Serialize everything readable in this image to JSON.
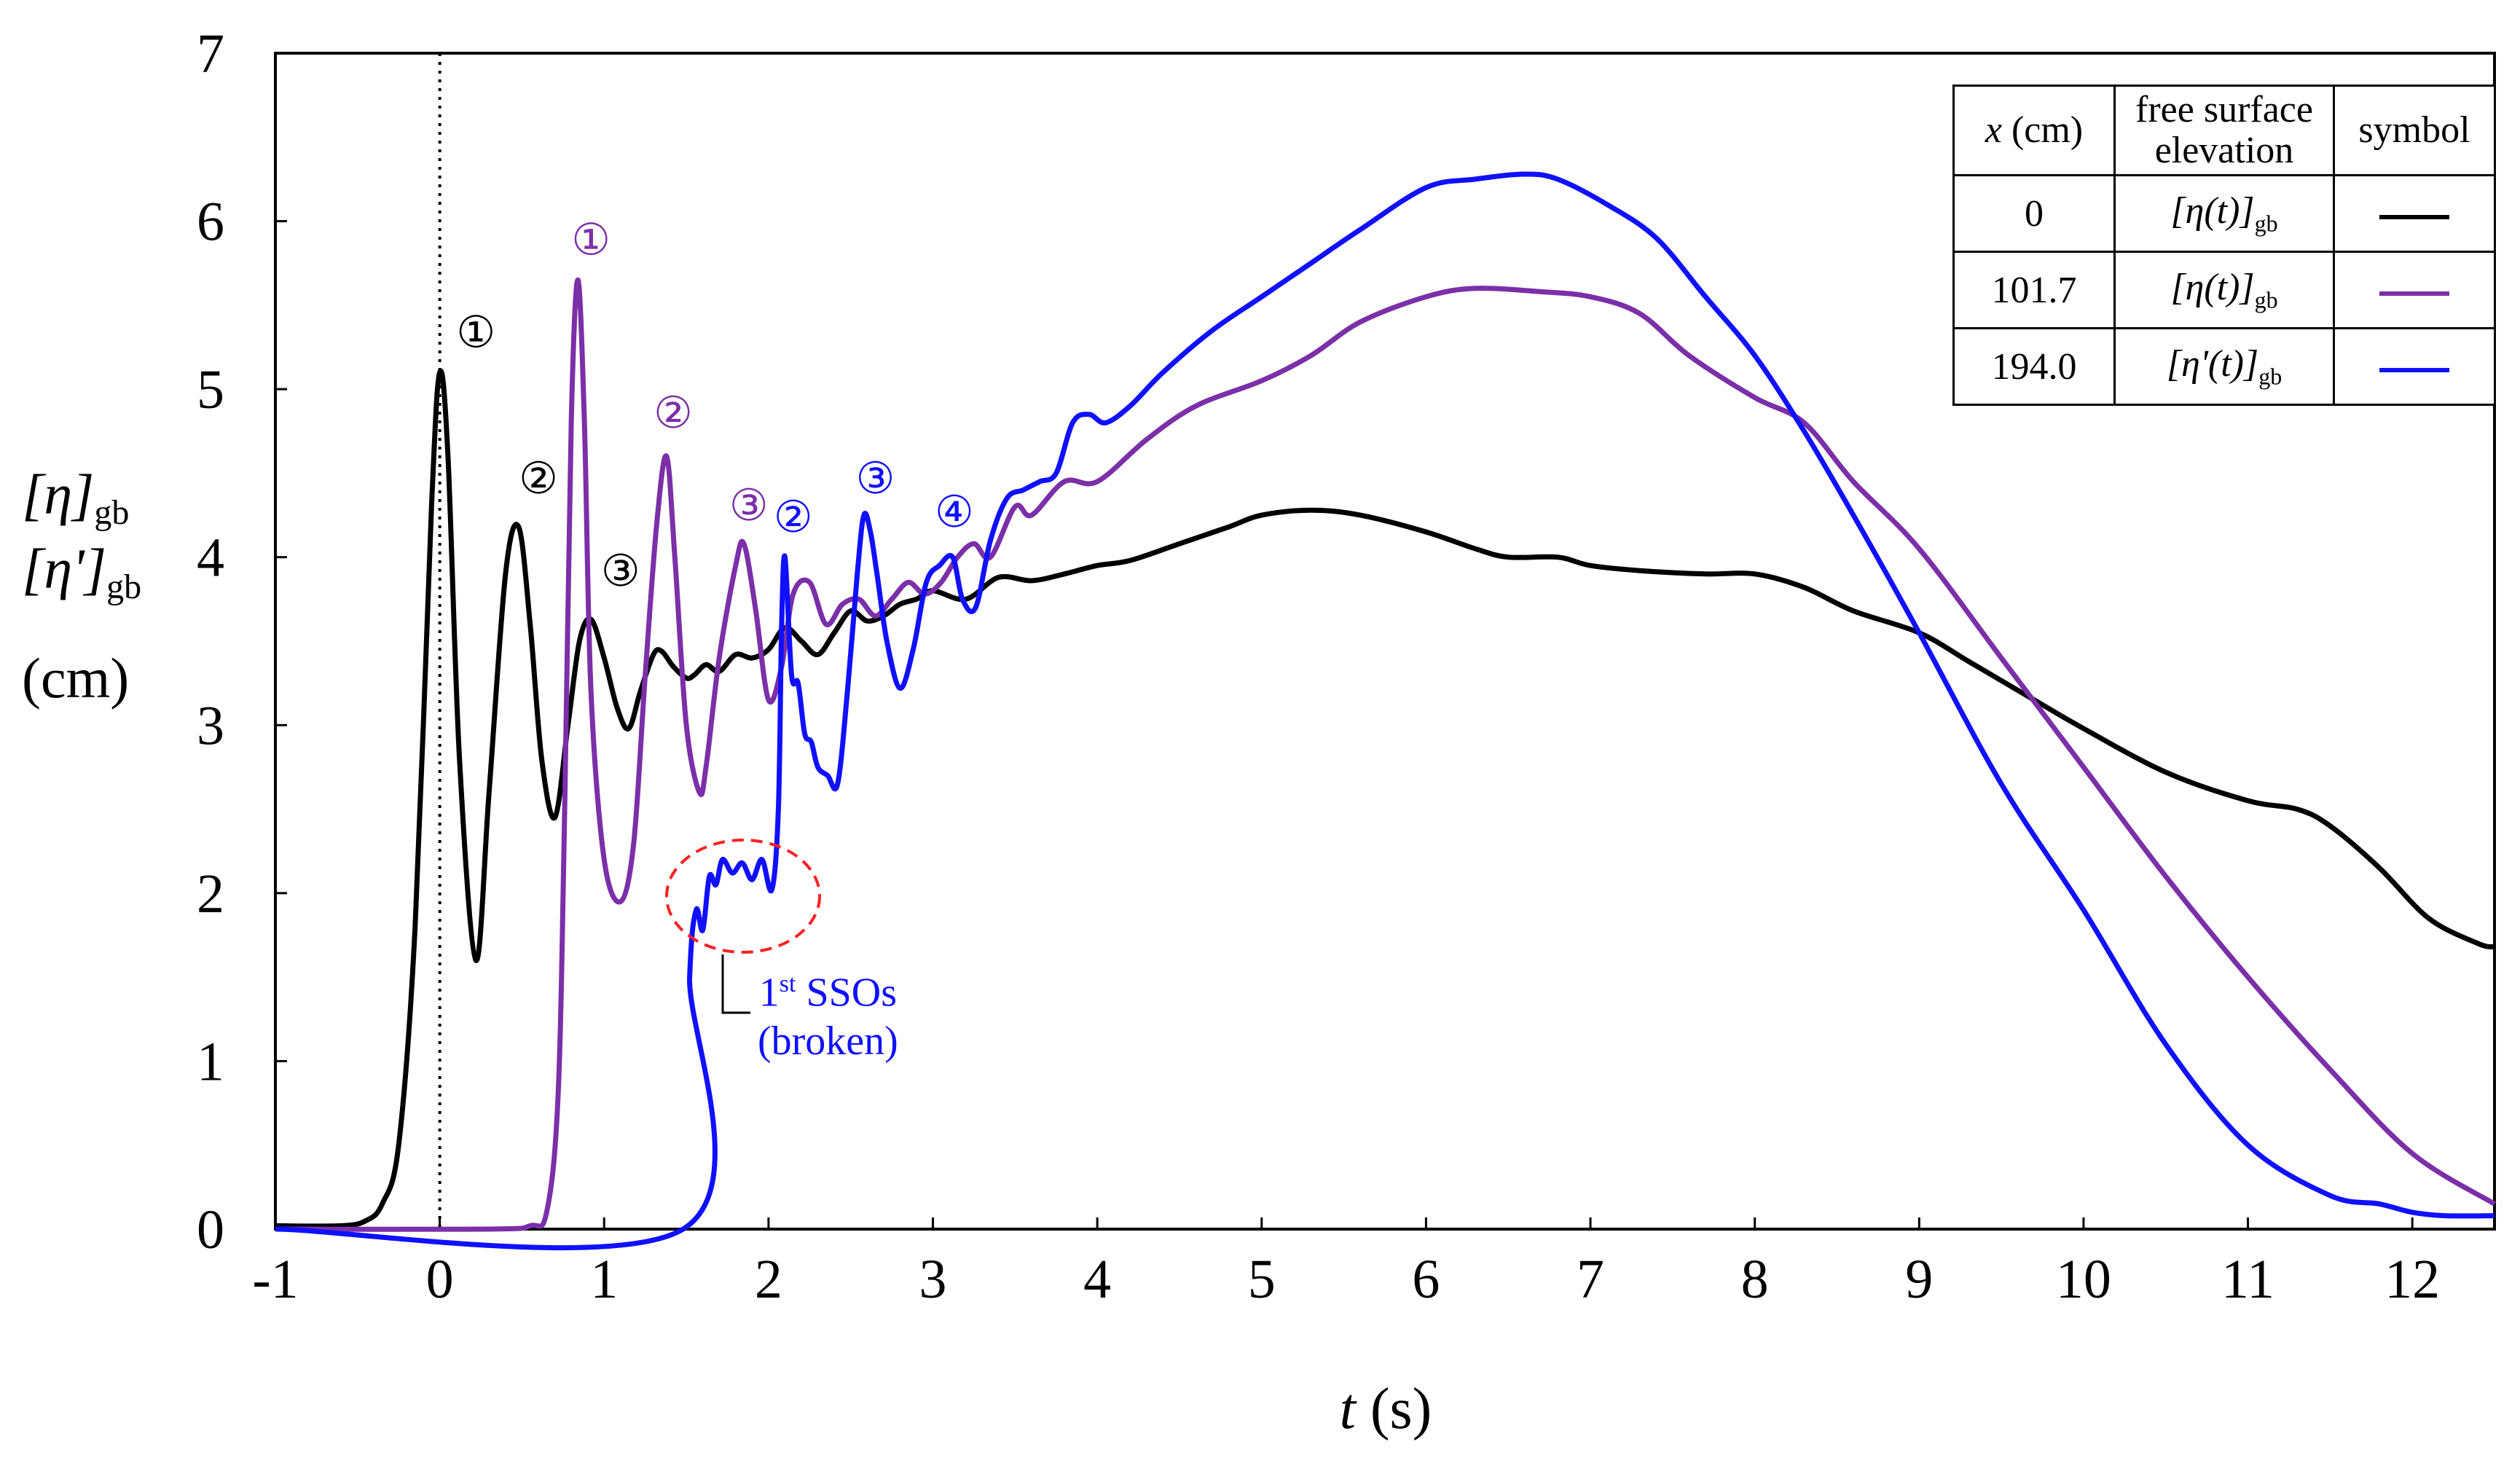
{
  "chart_data": {
    "type": "line",
    "title": "",
    "xlabel": "t (s)",
    "xlabel_var": "t",
    "xlabel_unit": "(s)",
    "ylabel_lines": [
      "[η]gb",
      "[η']gb",
      "(cm)"
    ],
    "ylabel_eta": "[η]",
    "ylabel_eta_prime": "[η']",
    "ylabel_sub": "gb",
    "ylabel_unit": "(cm)",
    "xlim": [
      -1,
      12.5
    ],
    "ylim": [
      0,
      7
    ],
    "xticks": [
      -1,
      0,
      1,
      2,
      3,
      4,
      5,
      6,
      7,
      8,
      9,
      10,
      11,
      12
    ],
    "yticks": [
      0,
      1,
      2,
      3,
      4,
      5,
      6,
      7
    ],
    "vline_x": 0,
    "grid": false,
    "legend": {
      "position": "top-right",
      "headers": [
        "x (cm)",
        "free surface elevation",
        "symbol"
      ],
      "header_x_var": "x",
      "header_x_unit": "(cm)",
      "header_free_surface": "free surface",
      "header_elevation": "elevation",
      "header_symbol": "symbol",
      "rows": [
        {
          "x": "0",
          "label": "[η(t)]gb",
          "label_main": "[η(t)]",
          "label_sub": "gb",
          "color": "#000000"
        },
        {
          "x": "101.7",
          "label": "[η(t)]gb",
          "label_main": "[η(t)]",
          "label_sub": "gb",
          "color": "#7b2fa8"
        },
        {
          "x": "194.0",
          "label": "[η'(t)]gb",
          "label_main": "[η'(t)]",
          "label_sub": "gb",
          "color": "#1010ff"
        }
      ]
    },
    "series": [
      {
        "name": "x = 0 cm",
        "color": "#000000",
        "x": [
          -1,
          -0.6,
          -0.45,
          -0.35,
          -0.25,
          -0.15,
          -0.05,
          0,
          0.05,
          0.12,
          0.22,
          0.3,
          0.4,
          0.48,
          0.55,
          0.62,
          0.7,
          0.78,
          0.85,
          0.92,
          1.0,
          1.08,
          1.15,
          1.22,
          1.3,
          1.35,
          1.42,
          1.5,
          1.55,
          1.62,
          1.7,
          1.8,
          1.9,
          2.0,
          2.1,
          2.2,
          2.3,
          2.4,
          2.5,
          2.6,
          2.7,
          2.8,
          2.9,
          3.0,
          3.2,
          3.4,
          3.6,
          3.8,
          4.0,
          4.2,
          4.5,
          4.8,
          5.0,
          5.3,
          5.6,
          6.0,
          6.3,
          6.5,
          6.8,
          7.0,
          7.3,
          7.7,
          8.0,
          8.3,
          8.6,
          9.0,
          9.3,
          9.7,
          10.0,
          10.5,
          11.0,
          11.3,
          11.5,
          11.8,
          12.1,
          12.4,
          12.5
        ],
        "y": [
          0.02,
          0.02,
          0.05,
          0.15,
          0.5,
          1.8,
          4.3,
          5.1,
          4.6,
          2.8,
          1.6,
          2.6,
          3.9,
          4.18,
          3.6,
          2.8,
          2.45,
          3.0,
          3.5,
          3.63,
          3.4,
          3.1,
          2.98,
          3.2,
          3.42,
          3.44,
          3.35,
          3.28,
          3.3,
          3.36,
          3.32,
          3.42,
          3.4,
          3.45,
          3.58,
          3.5,
          3.42,
          3.55,
          3.68,
          3.62,
          3.65,
          3.72,
          3.75,
          3.8,
          3.75,
          3.88,
          3.86,
          3.9,
          3.95,
          3.98,
          4.08,
          4.18,
          4.25,
          4.28,
          4.25,
          4.15,
          4.05,
          4.0,
          4.0,
          3.95,
          3.92,
          3.9,
          3.9,
          3.82,
          3.68,
          3.55,
          3.38,
          3.15,
          2.98,
          2.72,
          2.55,
          2.5,
          2.4,
          2.15,
          1.85,
          1.7,
          1.68
        ]
      },
      {
        "name": "x = 101.7 cm",
        "color": "#7b2fa8",
        "x": [
          -1,
          0.3,
          0.55,
          0.65,
          0.72,
          0.76,
          0.8,
          0.84,
          0.88,
          0.92,
          1.0,
          1.1,
          1.18,
          1.25,
          1.32,
          1.38,
          1.43,
          1.5,
          1.58,
          1.62,
          1.7,
          1.8,
          1.85,
          1.92,
          2.0,
          2.08,
          2.15,
          2.25,
          2.35,
          2.45,
          2.55,
          2.65,
          2.75,
          2.85,
          2.95,
          3.05,
          3.15,
          3.25,
          3.35,
          3.5,
          3.6,
          3.8,
          4.0,
          4.3,
          4.6,
          5.0,
          5.3,
          5.6,
          6.0,
          6.3,
          6.7,
          7.0,
          7.3,
          7.6,
          8.0,
          8.3,
          8.6,
          9.0,
          9.5,
          10.0,
          10.5,
          11.0,
          11.5,
          12.0,
          12.5
        ],
        "y": [
          0.0,
          0.0,
          0.02,
          0.1,
          0.8,
          2.5,
          4.8,
          5.65,
          4.8,
          3.2,
          2.2,
          1.95,
          2.3,
          3.3,
          4.2,
          4.6,
          4.0,
          3.0,
          2.6,
          2.75,
          3.4,
          3.95,
          4.08,
          3.7,
          3.15,
          3.35,
          3.78,
          3.85,
          3.6,
          3.72,
          3.75,
          3.65,
          3.75,
          3.85,
          3.78,
          3.85,
          4.0,
          4.08,
          4.0,
          4.3,
          4.25,
          4.45,
          4.45,
          4.7,
          4.9,
          5.05,
          5.2,
          5.4,
          5.55,
          5.6,
          5.58,
          5.55,
          5.45,
          5.2,
          4.95,
          4.8,
          4.45,
          4.05,
          3.4,
          2.75,
          2.1,
          1.5,
          0.95,
          0.45,
          0.15
        ]
      },
      {
        "name": "x = 194.0 cm",
        "color": "#1010ff",
        "x": [
          -1,
          1.48,
          1.52,
          1.56,
          1.6,
          1.64,
          1.68,
          1.72,
          1.78,
          1.84,
          1.9,
          1.96,
          2.02,
          2.06,
          2.08,
          2.1,
          2.14,
          2.18,
          2.22,
          2.26,
          2.3,
          2.36,
          2.42,
          2.48,
          2.54,
          2.58,
          2.62,
          2.66,
          2.72,
          2.8,
          2.88,
          2.96,
          3.04,
          3.12,
          3.18,
          3.26,
          3.35,
          3.45,
          3.55,
          3.65,
          3.75,
          3.85,
          3.95,
          4.05,
          4.2,
          4.4,
          4.7,
          5.0,
          5.3,
          5.6,
          6.0,
          6.3,
          6.6,
          6.8,
          7.1,
          7.4,
          7.7,
          8.0,
          8.3,
          8.6,
          9.0,
          9.5,
          10.0,
          10.5,
          11.0,
          11.5,
          11.8,
          12.0,
          12.2,
          12.5
        ],
        "y": [
          0.0,
          0.0,
          1.5,
          1.9,
          1.78,
          2.1,
          2.05,
          2.2,
          2.12,
          2.18,
          2.08,
          2.2,
          2.02,
          2.5,
          3.6,
          4.0,
          3.3,
          3.25,
          2.95,
          2.9,
          2.75,
          2.7,
          2.65,
          3.2,
          3.9,
          4.25,
          4.15,
          3.9,
          3.5,
          3.22,
          3.45,
          3.85,
          3.95,
          4.0,
          3.75,
          3.7,
          4.1,
          4.35,
          4.4,
          4.45,
          4.5,
          4.8,
          4.85,
          4.8,
          4.9,
          5.1,
          5.35,
          5.55,
          5.75,
          5.95,
          6.2,
          6.25,
          6.28,
          6.25,
          6.1,
          5.9,
          5.55,
          5.2,
          4.75,
          4.25,
          3.55,
          2.65,
          1.9,
          1.1,
          0.5,
          0.2,
          0.15,
          0.1,
          0.08,
          0.08
        ]
      }
    ],
    "annotations": {
      "black_marks": [
        {
          "text": "①",
          "x": 0.22,
          "y": 5.25
        },
        {
          "text": "②",
          "x": 0.6,
          "y": 4.38
        },
        {
          "text": "③",
          "x": 1.1,
          "y": 3.83
        }
      ],
      "purple_marks": [
        {
          "text": "①",
          "x": 0.92,
          "y": 5.8
        },
        {
          "text": "②",
          "x": 1.42,
          "y": 4.77
        },
        {
          "text": "③",
          "x": 1.88,
          "y": 4.22
        }
      ],
      "blue_marks": [
        {
          "text": "②",
          "x": 2.15,
          "y": 4.15
        },
        {
          "text": "③",
          "x": 2.65,
          "y": 4.38
        },
        {
          "text": "④",
          "x": 3.13,
          "y": 4.18
        }
      ],
      "ssos_label_ordinal": "1",
      "ssos_label_sup": "st",
      "ssos_label_main": "SSOs",
      "ssos_label_sub": "(broken)"
    }
  }
}
